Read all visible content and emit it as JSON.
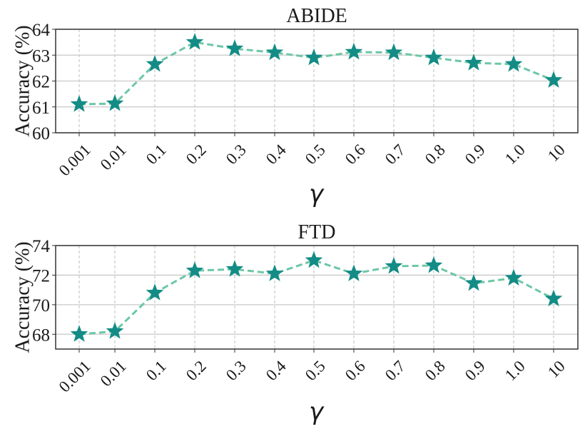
{
  "chart_data": [
    {
      "type": "line",
      "title": "ABIDE",
      "xlabel": "γ",
      "ylabel": "Accuracy (%)",
      "categories": [
        "0.001",
        "0.01",
        "0.1",
        "0.2",
        "0.3",
        "0.4",
        "0.5",
        "0.6",
        "0.7",
        "0.8",
        "0.9",
        "1.0",
        "10"
      ],
      "series": [
        {
          "name": "ABIDE",
          "values": [
            61.1,
            61.13,
            62.65,
            63.5,
            63.25,
            63.1,
            62.9,
            63.12,
            63.1,
            62.9,
            62.7,
            62.65,
            62.03
          ]
        }
      ],
      "ylim": [
        60,
        64
      ],
      "yticks": [
        "60",
        "61",
        "62",
        "63",
        "64"
      ],
      "grid": true,
      "marker": "star",
      "line_style": "dashed",
      "legend": null
    },
    {
      "type": "line",
      "title": "FTD",
      "xlabel": "γ",
      "ylabel": "Accuracy (%)",
      "categories": [
        "0.001",
        "0.01",
        "0.1",
        "0.2",
        "0.3",
        "0.4",
        "0.5",
        "0.6",
        "0.7",
        "0.8",
        "0.9",
        "1.0",
        "10"
      ],
      "series": [
        {
          "name": "FTD",
          "values": [
            68.0,
            68.2,
            70.8,
            72.3,
            72.4,
            72.1,
            73.0,
            72.1,
            72.6,
            72.65,
            71.45,
            71.8,
            70.4
          ]
        }
      ],
      "ylim": [
        67,
        74
      ],
      "yticks": [
        "68",
        "70",
        "72",
        "74"
      ],
      "grid": true,
      "marker": "star",
      "line_style": "dashed",
      "legend": null
    }
  ],
  "colors": {
    "line": "#6cc7a6",
    "marker": "#138c86",
    "grid_h": "#c8c8c8",
    "grid_v": "#bdbdbd",
    "axis": "#333333"
  }
}
